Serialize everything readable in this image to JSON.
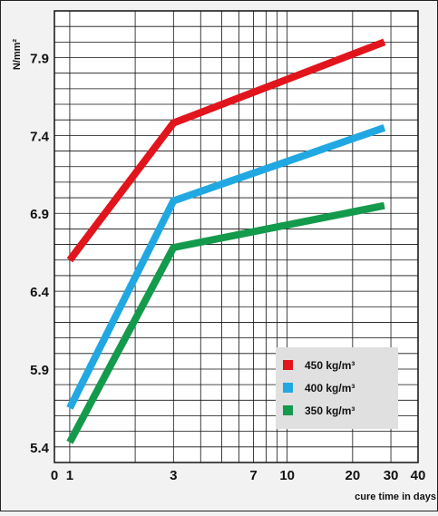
{
  "chart_data": {
    "type": "line",
    "ylabel": "N/mm²",
    "xlabel": "cure time in days",
    "x_scale": "log",
    "xlim": [
      1,
      40
    ],
    "ylim": [
      5.3,
      8.2
    ],
    "grid": true,
    "legend_position": "bottom-right",
    "x_ticks": [
      {
        "label": "0",
        "value": 0.85
      },
      {
        "label": "1",
        "value": 1
      },
      {
        "label": "3",
        "value": 3
      },
      {
        "label": "7",
        "value": 7
      },
      {
        "label": "10",
        "value": 10
      },
      {
        "label": "20",
        "value": 20
      },
      {
        "label": "30",
        "value": 30
      },
      {
        "label": "40",
        "value": 40
      }
    ],
    "y_ticks": [
      5.4,
      5.9,
      6.4,
      6.9,
      7.4,
      7.9
    ],
    "series": [
      {
        "name": "450 kg/m³",
        "color": "#e2141c",
        "x": [
          1,
          3,
          28
        ],
        "y": [
          6.6,
          7.48,
          8.0
        ]
      },
      {
        "name": "400 kg/m³",
        "color": "#21a8e2",
        "x": [
          1,
          3,
          28
        ],
        "y": [
          5.65,
          6.98,
          7.45
        ]
      },
      {
        "name": "350 kg/m³",
        "color": "#149a4c",
        "x": [
          1,
          3,
          28
        ],
        "y": [
          5.43,
          6.68,
          6.95
        ]
      }
    ]
  }
}
